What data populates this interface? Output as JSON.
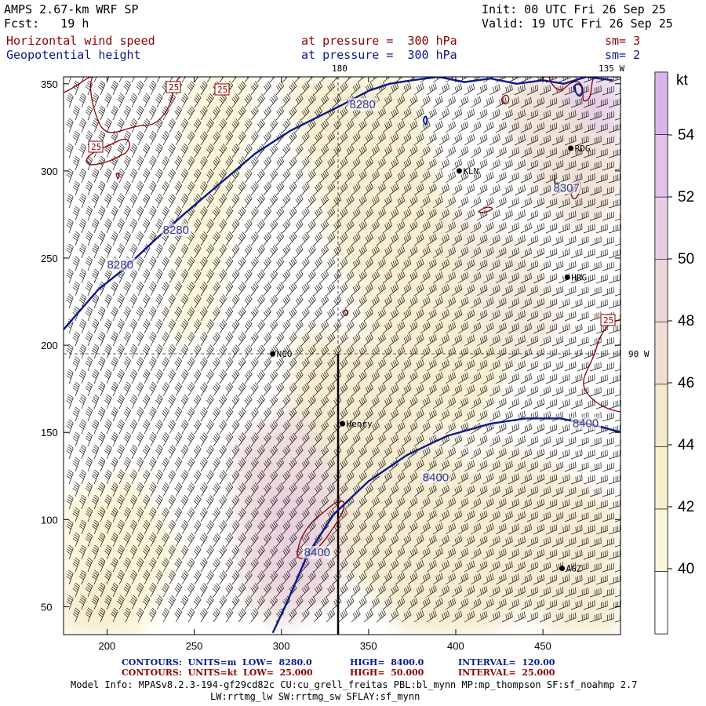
{
  "header": {
    "model": "AMPS 2.67-km WRF SP",
    "init": "Init: 00 UTC Fri 26 Sep 25",
    "fcst": "Fcst:   19 h",
    "valid": "Valid: 19 UTC Fri 26 Sep 25",
    "field1": "Horizontal wind speed",
    "field2": "Geopotential height",
    "press1": "at pressure =  300 hPa",
    "press2": "at pressure =  300 hPa",
    "sm1": "sm= 3",
    "sm2": "sm= 2"
  },
  "map": {
    "lon_labels": {
      "top": "180",
      "right_top": "135 W",
      "right_mid": "90 W"
    },
    "x_ticks": [
      "200",
      "250",
      "300",
      "350",
      "400",
      "450"
    ],
    "y_ticks": [
      "50",
      "100",
      "150",
      "200",
      "250",
      "300",
      "350"
    ],
    "stations": [
      {
        "name": "RDG",
        "x": 466,
        "y": 313
      },
      {
        "name": "KLN",
        "x": 402,
        "y": 300
      },
      {
        "name": "HRG",
        "x": 464,
        "y": 239
      },
      {
        "name": "NCO",
        "x": 295,
        "y": 195
      },
      {
        "name": "Henry",
        "x": 335,
        "y": 155
      },
      {
        "name": "AGZ",
        "x": 461,
        "y": 72
      }
    ],
    "height_contours": [
      {
        "label": "8280",
        "points": [
          [
            175,
            209
          ],
          [
            195,
            232
          ],
          [
            210,
            244
          ],
          [
            228,
            261
          ],
          [
            245,
            276
          ],
          [
            265,
            293
          ],
          [
            285,
            310
          ],
          [
            305,
            323
          ],
          [
            325,
            333
          ],
          [
            335,
            338
          ]
        ]
      },
      {
        "label": "8400",
        "points": [
          [
            295,
            35
          ],
          [
            303,
            52
          ],
          [
            315,
            80
          ],
          [
            330,
            103
          ],
          [
            350,
            122
          ],
          [
            372,
            137
          ],
          [
            395,
            148
          ],
          [
            420,
            155
          ],
          [
            440,
            158
          ],
          [
            460,
            158
          ],
          [
            480,
            154
          ],
          [
            495,
            150
          ]
        ]
      },
      {
        "label": "",
        "points": [
          [
            335,
            338
          ],
          [
            350,
            346
          ],
          [
            362,
            350
          ],
          [
            375,
            352
          ],
          [
            390,
            354
          ],
          [
            405,
            351
          ],
          [
            420,
            353
          ],
          [
            435,
            350
          ],
          [
            450,
            352
          ],
          [
            462,
            350
          ],
          [
            475,
            354
          ],
          [
            490,
            352
          ]
        ]
      }
    ],
    "height_labels": [
      {
        "text": "8280",
        "x": 339,
        "y": 336
      },
      {
        "text": "8280",
        "x": 232,
        "y": 264
      },
      {
        "text": "8280",
        "x": 200,
        "y": 244
      },
      {
        "text": "8400",
        "x": 381,
        "y": 122
      },
      {
        "text": "8400",
        "x": 313,
        "y": 79
      },
      {
        "text": "8400",
        "x": 467,
        "y": 153
      },
      {
        "text": "8307",
        "x": 456,
        "y": 288
      }
    ],
    "speed_labels": [
      "25",
      "25",
      "25",
      "25"
    ],
    "pressure_L": "L",
    "colorbar_unit": "kt",
    "colorbar_ticks": [
      "54",
      "52",
      "50",
      "48",
      "46",
      "44",
      "42",
      "40"
    ]
  },
  "footer": {
    "line1_label": "CONTOURS:  UNITS=m  LOW=  8280.0",
    "line1_high": "HIGH=  8400.0",
    "line1_int": "INTERVAL=  120.00",
    "line2_label": "CONTOURS:  UNITS=kt  LOW=  25.000",
    "line2_high": "HIGH=  50.000",
    "line2_int": "INTERVAL=  25.000",
    "model_info": "Model Info: MPASv8.2.3-194-gf29cd82c CU:cu_grell_freitas PBL:bl_mynn MP:mp_thompson SF:sf_noahmp 2.7",
    "model_info2": "LW:rrtmg_lw SW:rrtmg_sw SFLAY:sf_mynn"
  },
  "colors": {
    "height_contour": "#0a1a8a",
    "speed_contour": "#8b0000",
    "fill_40": "#fbf5d5",
    "fill_44": "#f3e9c6",
    "fill_48": "#eedede",
    "fill_52": "#e6cfe6"
  }
}
